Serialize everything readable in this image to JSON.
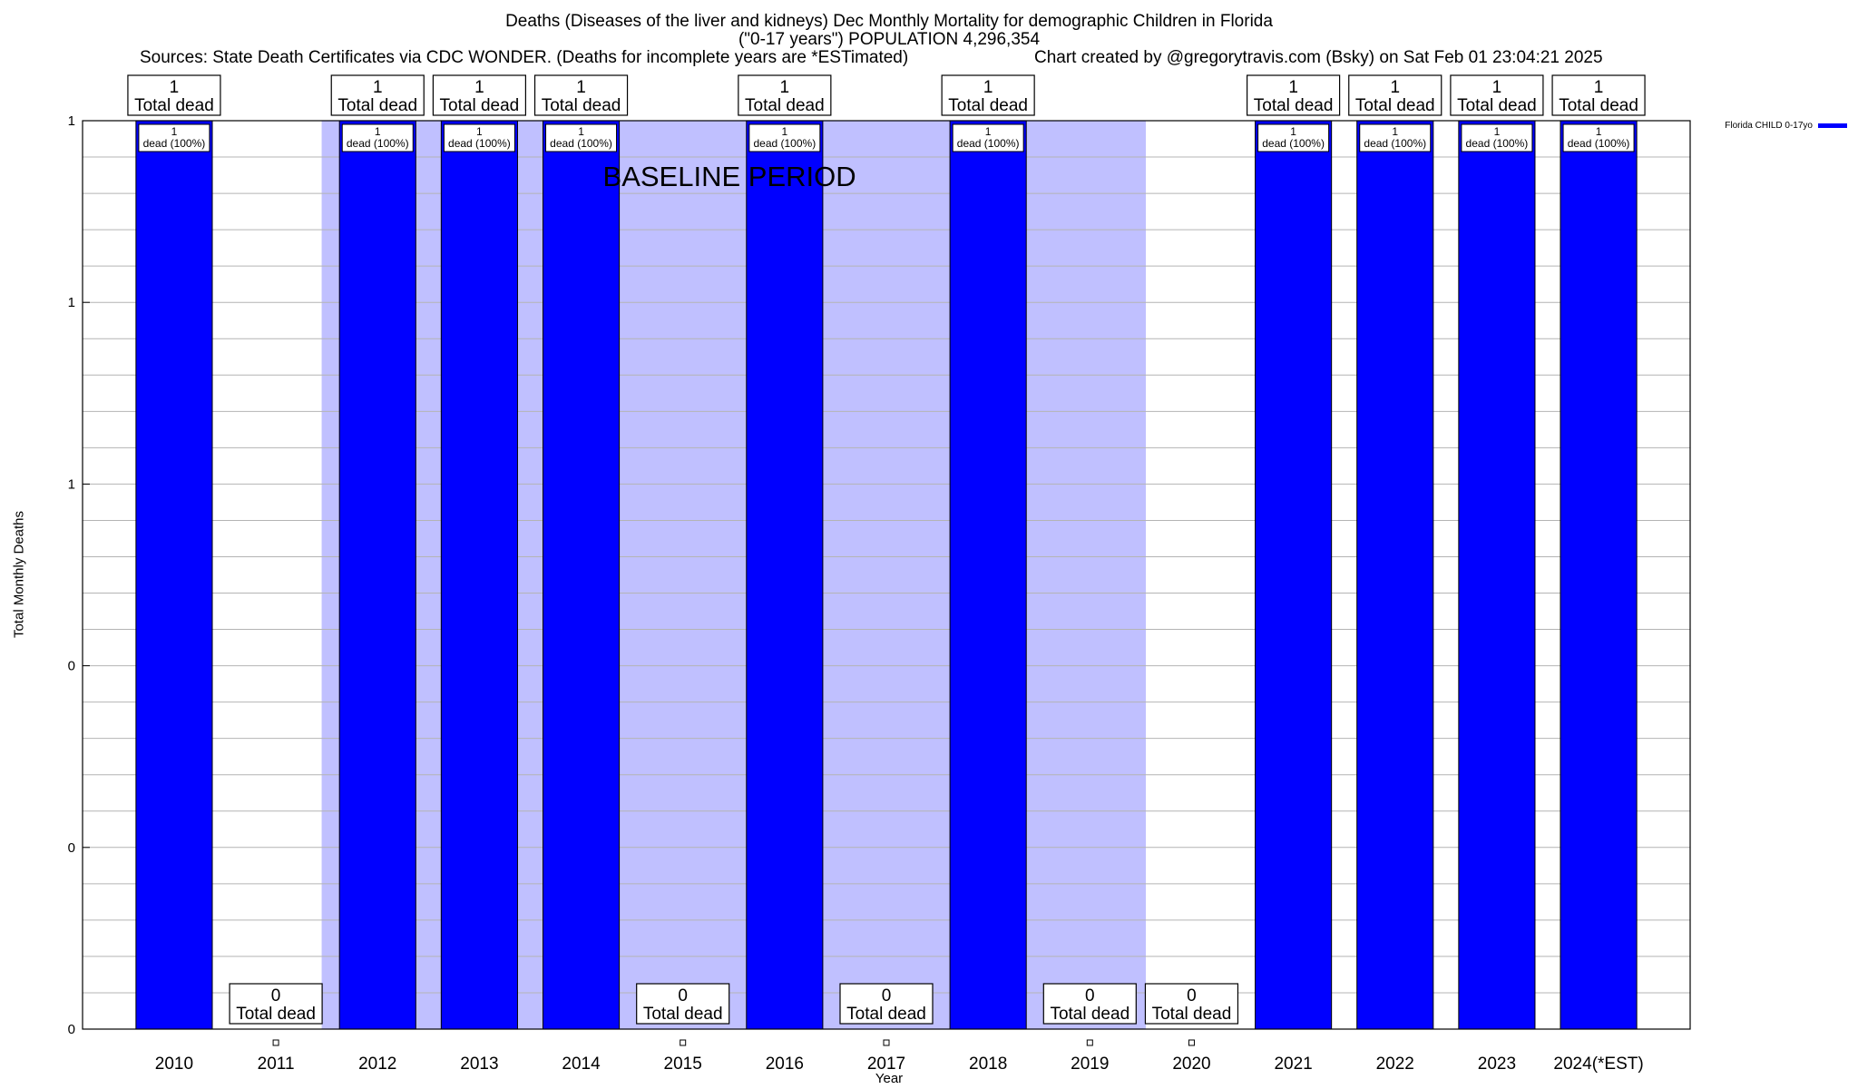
{
  "chart_data": {
    "type": "bar",
    "title": "Deaths (Diseases of the liver and kidneys) Dec Monthly Mortality for demographic Children in Florida",
    "title_line2": "(\"0-17 years\") POPULATION 4,296,354",
    "sources_text": "Sources: State Death Certificates via CDC WONDER. (Deaths for incomplete years are *ESTimated)",
    "credit_text": "Chart created by @gregorytravis.com (Bsky) on Sat Feb 01 23:04:21 2025",
    "xlabel": "Year",
    "ylabel": "Total Monthly Deaths",
    "ylim": [
      0,
      1
    ],
    "y_tick_labels": [
      "0",
      "0",
      "0",
      "1",
      "1",
      "1"
    ],
    "grid": true,
    "legend_position": "top-right",
    "categories": [
      "2010",
      "2011",
      "2012",
      "2013",
      "2014",
      "2015",
      "2016",
      "2017",
      "2018",
      "2019",
      "2020",
      "2021",
      "2022",
      "2023",
      "2024(*EST)"
    ],
    "series": [
      {
        "name": "Florida CHILD 0-17yo",
        "color": "#0000ff",
        "values": [
          1,
          0,
          1,
          1,
          1,
          0,
          1,
          0,
          1,
          0,
          0,
          1,
          1,
          1,
          1
        ]
      }
    ],
    "total_labels": [
      "1",
      "0",
      "1",
      "1",
      "1",
      "0",
      "1",
      "0",
      "1",
      "0",
      "0",
      "1",
      "1",
      "1",
      "1"
    ],
    "total_suffix": "Total dead",
    "bar_labels": [
      "1",
      "dead (100%)"
    ],
    "baseline_label": "BASELINE PERIOD",
    "baseline_color": "#c0c0ff",
    "baseline_range": [
      "2012",
      "2019"
    ]
  }
}
